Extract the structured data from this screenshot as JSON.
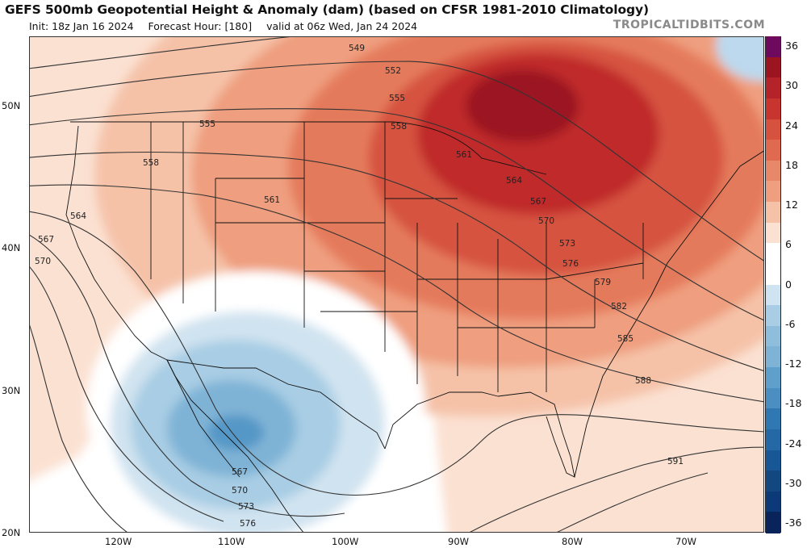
{
  "header": {
    "title": "GEFS 500mb Geopotential Height & Anomaly (dam) (based on CFSR 1981-2010 Climatology)",
    "init": "Init: 18z Jan 16 2024",
    "forecast_hour": "Forecast Hour: [180]",
    "valid": "valid at 06z Wed, Jan 24 2024",
    "brand": "TROPICALTIDBITS.COM"
  },
  "map": {
    "lat_labels": [
      "50N",
      "40N",
      "30N",
      "20N"
    ],
    "lon_labels": [
      "120W",
      "110W",
      "100W",
      "90W",
      "80W",
      "70W"
    ],
    "contour_labels": [
      "549",
      "552",
      "555",
      "555",
      "558",
      "558",
      "561",
      "561",
      "564",
      "564",
      "567",
      "567",
      "570",
      "570",
      "573",
      "576",
      "579",
      "582",
      "585",
      "588",
      "591",
      "567",
      "570",
      "573",
      "576"
    ],
    "colors": {
      "pos": [
        "#fbe1d2",
        "#f5c2a8",
        "#ef9f7f",
        "#e47a5b",
        "#d6523f",
        "#c0292a",
        "#9b1520",
        "#78081a"
      ],
      "neg": [
        "#d0e3f0",
        "#a8cde4",
        "#7fb3d6",
        "#5497c6",
        "#3078b2",
        "#175796",
        "#0c3a78",
        "#08245a"
      ],
      "cold_corner": "#bcd9ee",
      "coast": "#111111",
      "contour": "#333333"
    }
  },
  "colorbar": {
    "labels": [
      "36",
      "30",
      "24",
      "18",
      "12",
      "6",
      "0",
      "-6",
      "-12",
      "-18",
      "-24",
      "-30",
      "-36"
    ],
    "colors": [
      "#6e0a5e",
      "#9b1520",
      "#b5232a",
      "#c8352e",
      "#d6523f",
      "#e06a4f",
      "#e8886a",
      "#ef9f7f",
      "#f5c2a8",
      "#fbe1d2",
      "#ffffff",
      "#ffffff",
      "#d0e3f0",
      "#a8cde4",
      "#8fbedc",
      "#7fb3d6",
      "#5f9fcc",
      "#4b8fc2",
      "#3078b2",
      "#2468a6",
      "#175796",
      "#12487f",
      "#0c3a78",
      "#08245a"
    ]
  }
}
